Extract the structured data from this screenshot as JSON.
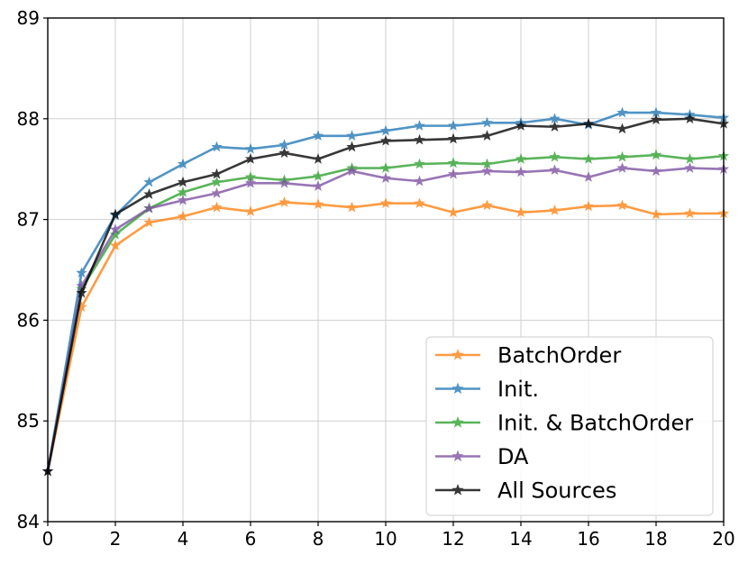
{
  "chart_data": {
    "type": "line",
    "title": "",
    "xlabel": "",
    "ylabel": "",
    "xlim": [
      0,
      20
    ],
    "ylim": [
      84,
      89
    ],
    "xticks": [
      0,
      2,
      4,
      6,
      8,
      10,
      12,
      14,
      16,
      18,
      20
    ],
    "yticks": [
      84,
      85,
      86,
      87,
      88,
      89
    ],
    "grid": true,
    "legend_position": "lower-right",
    "x": [
      0,
      1,
      2,
      3,
      4,
      5,
      6,
      7,
      8,
      9,
      10,
      11,
      12,
      13,
      14,
      15,
      16,
      17,
      18,
      19,
      20
    ],
    "series": [
      {
        "name": "BatchOrder",
        "color": "#ff7f0e",
        "values": [
          84.5,
          86.13,
          86.74,
          86.97,
          87.03,
          87.12,
          87.08,
          87.17,
          87.15,
          87.12,
          87.16,
          87.16,
          87.07,
          87.14,
          87.07,
          87.09,
          87.13,
          87.14,
          87.05,
          87.06,
          87.06
        ]
      },
      {
        "name": "Init.",
        "color": "#1f77b4",
        "values": [
          84.5,
          86.47,
          87.04,
          87.37,
          87.55,
          87.72,
          87.7,
          87.74,
          87.83,
          87.83,
          87.88,
          87.93,
          87.93,
          87.96,
          87.96,
          88.0,
          87.94,
          88.06,
          88.06,
          88.04,
          88.01
        ]
      },
      {
        "name": "Init. & BatchOrder",
        "color": "#2ca02c",
        "values": [
          84.5,
          86.31,
          86.85,
          87.11,
          87.27,
          87.37,
          87.42,
          87.39,
          87.43,
          87.51,
          87.51,
          87.55,
          87.56,
          87.55,
          87.6,
          87.62,
          87.6,
          87.62,
          87.64,
          87.6,
          87.63
        ]
      },
      {
        "name": "DA",
        "color": "#7b4fa0",
        "values": [
          84.5,
          86.34,
          86.9,
          87.11,
          87.19,
          87.26,
          87.36,
          87.36,
          87.33,
          87.48,
          87.41,
          87.38,
          87.45,
          87.48,
          87.47,
          87.49,
          87.42,
          87.51,
          87.48,
          87.51,
          87.5
        ]
      },
      {
        "name": "All Sources",
        "color": "#000000",
        "values": [
          84.5,
          86.27,
          87.05,
          87.25,
          87.37,
          87.45,
          87.6,
          87.66,
          87.6,
          87.72,
          87.78,
          87.79,
          87.8,
          87.83,
          87.93,
          87.92,
          87.95,
          87.9,
          87.99,
          88.0,
          87.95
        ]
      }
    ]
  }
}
